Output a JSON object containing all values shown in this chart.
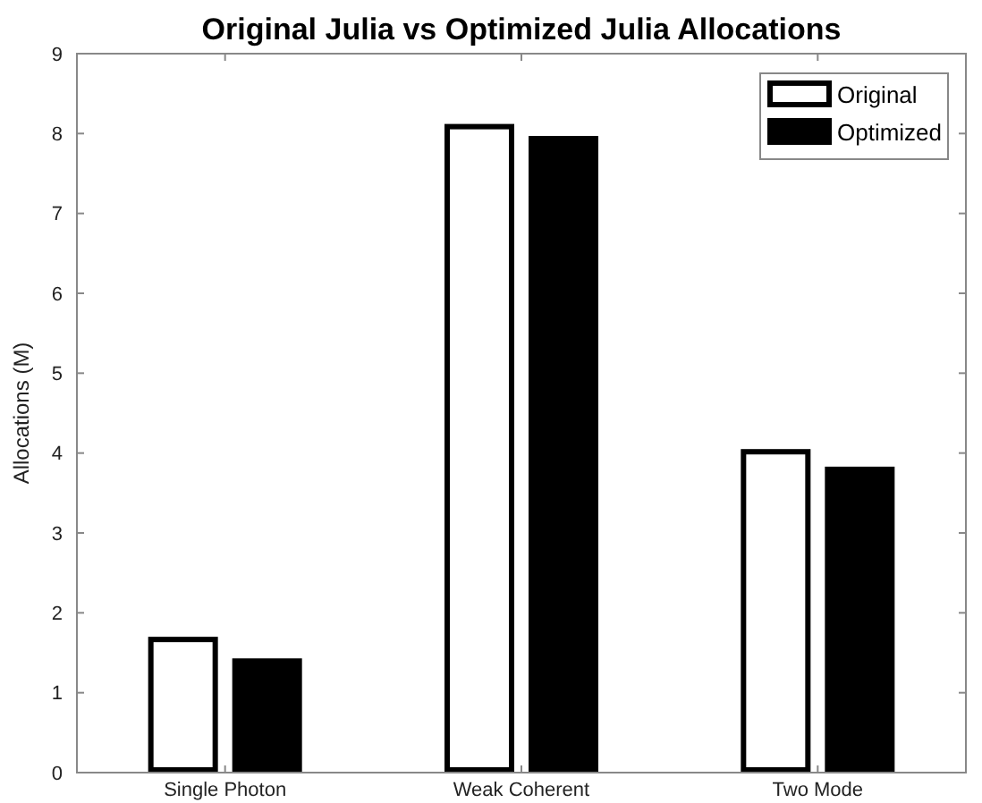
{
  "chart_data": {
    "type": "bar",
    "title": "Original Julia vs Optimized Julia Allocations",
    "ylabel": "Allocations (M)",
    "categories": [
      "Single Photon",
      "Weak Coherent",
      "Two Mode"
    ],
    "series": [
      {
        "name": "Original",
        "color": "#ffffff",
        "values": [
          1.7,
          8.12,
          4.05
        ]
      },
      {
        "name": "Optimized",
        "color": "#000000",
        "values": [
          1.43,
          7.97,
          3.83
        ]
      }
    ],
    "ylim": [
      0,
      9
    ],
    "yticks": [
      0,
      1,
      2,
      3,
      4,
      5,
      6,
      7,
      8,
      9
    ],
    "grid": false,
    "legend": "top right"
  }
}
